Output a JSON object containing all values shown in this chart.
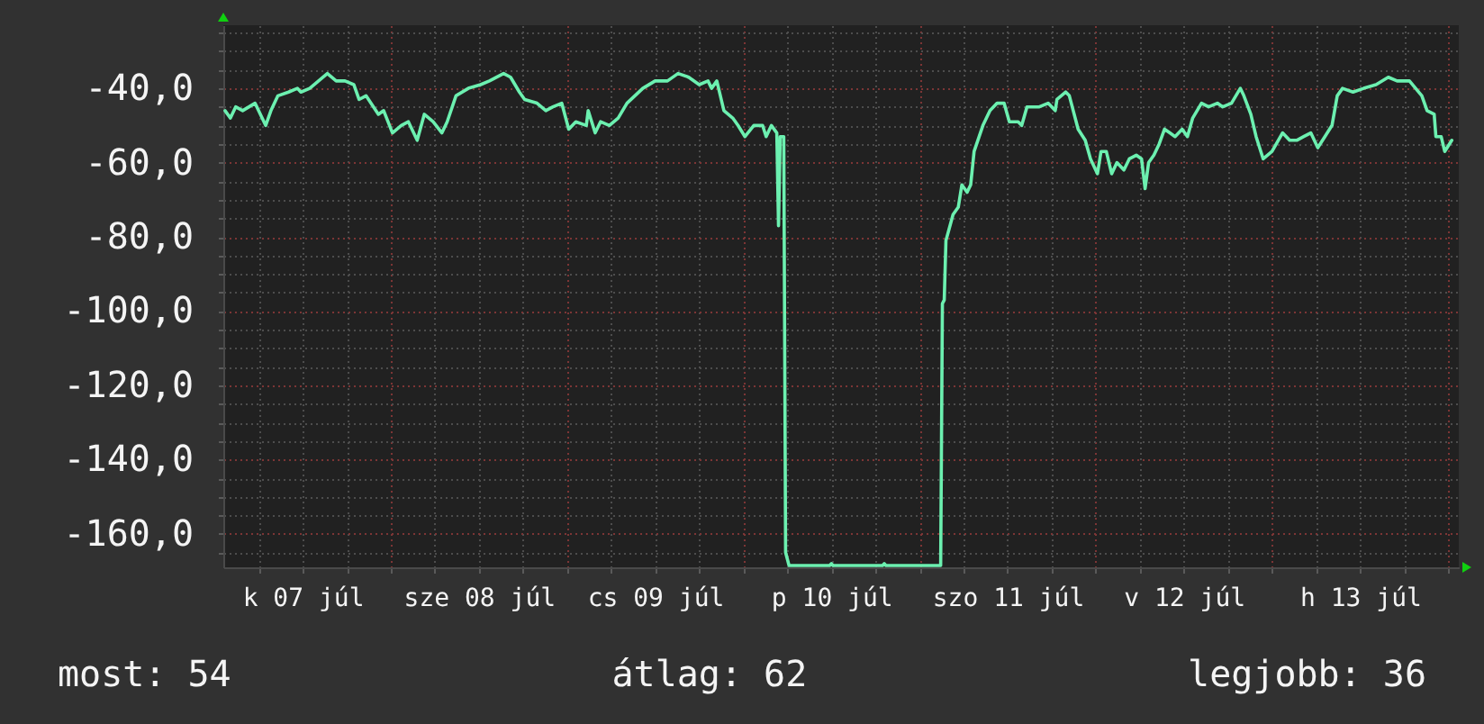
{
  "chart_data": {
    "type": "line",
    "x": [
      "--07-07T01:26",
      "--07-07T02:10",
      "--07-07T02:53",
      "--07-07T03:50",
      "--07-07T05:31",
      "--07-07T06:00",
      "--07-07T06:58",
      "--07-07T07:41",
      "--07-07T08:38",
      "--07-07T10:05",
      "--07-07T11:17",
      "--07-07T11:46",
      "--07-07T12:58",
      "--07-07T14:10",
      "--07-07T15:22",
      "--07-07T16:34",
      "--07-07T17:46",
      "--07-07T18:58",
      "--07-07T19:41",
      "--07-07T20:38",
      "--07-07T22:19",
      "--07-07T23:02",
      "--07-08T00:14",
      "--07-08T01:26",
      "--07-08T02:24",
      "--07-08T03:36",
      "--07-08T04:34",
      "--07-08T05:46",
      "--07-08T06:58",
      "--07-08T07:41",
      "--07-08T08:53",
      "--07-08T10:34",
      "--07-08T12:14",
      "--07-08T13:26",
      "--07-08T15:22",
      "--07-08T16:19",
      "--07-08T17:31",
      "--07-08T18:14",
      "--07-08T19:55",
      "--07-08T21:07",
      "--07-08T22:05",
      "--07-08T23:17",
      "--07-09T00:14",
      "--07-09T01:12",
      "--07-09T02:38",
      "--07-09T02:53",
      "--07-09T03:50",
      "--07-09T04:34",
      "--07-09T05:46",
      "--07-09T06:58",
      "--07-09T08:10",
      "--07-09T10:19",
      "--07-09T12:00",
      "--07-09T13:41",
      "--07-09T15:07",
      "--07-09T16:34",
      "--07-09T18:00",
      "--07-09T19:12",
      "--07-09T19:41",
      "--07-09T20:24",
      "--07-09T21:22",
      "--07-09T22:34",
      "--07-09T23:17",
      "--07-10T00:14",
      "--07-10T01:26",
      "--07-10T02:38",
      "--07-10T03:07",
      "--07-10T03:50",
      "--07-10T04:34",
      "--07-10T04:48",
      "--07-10T05:02",
      "--07-10T05:31",
      "--07-10T05:46",
      "--07-10T06:14",
      "--07-10T11:46",
      "--07-10T12:00",
      "--07-10T12:14",
      "--07-10T18:58",
      "--07-10T19:12",
      "--07-10T19:26",
      "--07-11T02:53",
      "--07-11T03:07",
      "--07-11T03:22",
      "--07-11T03:36",
      "--07-11T04:34",
      "--07-11T05:17",
      "--07-11T05:46",
      "--07-11T06:29",
      "--07-11T06:58",
      "--07-11T07:26",
      "--07-11T08:38",
      "--07-11T09:36",
      "--07-11T10:34",
      "--07-11T11:31",
      "--07-11T12:14",
      "--07-11T13:26",
      "--07-11T13:55",
      "--07-11T14:38",
      "--07-11T16:19",
      "--07-11T17:31",
      "--07-11T18:29",
      "--07-11T18:43",
      "--07-11T19:55",
      "--07-11T20:24",
      "--07-11T21:36",
      "--07-11T22:34",
      "--07-11T23:17",
      "--07-12T00:14",
      "--07-12T00:43",
      "--07-12T01:26",
      "--07-12T02:10",
      "--07-12T02:53",
      "--07-12T03:50",
      "--07-12T04:34",
      "--07-12T05:31",
      "--07-12T06:14",
      "--07-12T06:43",
      "--07-12T07:12",
      "--07-12T07:55",
      "--07-12T08:38",
      "--07-12T09:22",
      "--07-12T10:05",
      "--07-12T10:48",
      "--07-12T11:46",
      "--07-12T12:29",
      "--07-12T13:12",
      "--07-12T14:24",
      "--07-12T15:22",
      "--07-12T16:34",
      "--07-12T17:17",
      "--07-12T18:29",
      "--07-12T19:41",
      "--07-12T20:10",
      "--07-12T21:07",
      "--07-12T21:50",
      "--07-12T22:48",
      "--07-13T00:00",
      "--07-13T01:26",
      "--07-13T02:24",
      "--07-13T03:22",
      "--07-13T04:19",
      "--07-13T05:17",
      "--07-13T06:14",
      "--07-13T07:12",
      "--07-13T08:10",
      "--07-13T08:53",
      "--07-13T09:36",
      "--07-13T11:02",
      "--07-13T12:29",
      "--07-13T14:10",
      "--07-13T15:50",
      "--07-13T17:02",
      "--07-13T18:43",
      "--07-13T20:24",
      "--07-13T21:07",
      "--07-13T22:05",
      "--07-13T22:19",
      "--07-13T23:02",
      "--07-13T23:31",
      "--07-14T00:29"
    ],
    "series": [
      {
        "color": "#6cf0b0",
        "values": [
          -46,
          -48,
          -45,
          -46,
          -44,
          -46,
          -50,
          -46,
          -42,
          -41,
          -40,
          -41,
          -40,
          -38,
          -36,
          -38,
          -38,
          -39,
          -43,
          -42,
          -47,
          -46,
          -52,
          -50,
          -49,
          -54,
          -47,
          -49,
          -52,
          -49,
          -42,
          -40,
          -39,
          -38,
          -36,
          -37,
          -41,
          -43,
          -44,
          -46,
          -45,
          -44,
          -51,
          -49,
          -50,
          -46,
          -52,
          -49,
          -50,
          -48,
          -44,
          -40,
          -38,
          -38,
          -36,
          -37,
          -39,
          -38,
          -40,
          -38,
          -46,
          -48,
          -50,
          -53,
          -50,
          -50,
          -53,
          -50,
          -52,
          -77,
          -53,
          -53,
          -165,
          -168.5,
          -168.5,
          -168,
          -168.5,
          -168.5,
          -168,
          -168.5,
          -168.5,
          -98,
          -97,
          -81,
          -74,
          -72,
          -66,
          -68,
          -66,
          -57,
          -50,
          -46,
          -44,
          -44,
          -49,
          -49,
          -50,
          -45,
          -45,
          -44,
          -46,
          -43,
          -41,
          -42,
          -51,
          -54,
          -59,
          -63,
          -57,
          -57,
          -63,
          -60,
          -62,
          -59,
          -58,
          -59,
          -67,
          -60,
          -58,
          -55,
          -51,
          -52,
          -53,
          -51,
          -53,
          -48,
          -44,
          -45,
          -44,
          -45,
          -44,
          -40,
          -42,
          -47,
          -53,
          -59,
          -57,
          -52,
          -54,
          -54,
          -53,
          -52,
          -56,
          -53,
          -50,
          -42,
          -40,
          -41,
          -40,
          -39,
          -37,
          -38,
          -38,
          -42,
          -46,
          -47,
          -53,
          -53,
          -57,
          -54
        ]
      }
    ],
    "xlim": [
      "--07-07T01:12",
      "--07-14T01:26"
    ],
    "ylim": [
      -169,
      -23
    ],
    "xticks": [
      {
        "value": "--07-07T06:00",
        "label": null
      },
      {
        "value": "--07-07T12:00",
        "label": "k 07 júl"
      },
      {
        "value": "--07-07T18:00",
        "label": null
      },
      {
        "value": "--07-08T00:00",
        "label": null
      },
      {
        "value": "--07-08T06:00",
        "label": null
      },
      {
        "value": "--07-08T12:00",
        "label": "sze 08 júl"
      },
      {
        "value": "--07-08T18:00",
        "label": null
      },
      {
        "value": "--07-09T00:00",
        "label": null
      },
      {
        "value": "--07-09T06:00",
        "label": null
      },
      {
        "value": "--07-09T12:00",
        "label": "cs 09 júl"
      },
      {
        "value": "--07-09T18:00",
        "label": null
      },
      {
        "value": "--07-10T00:00",
        "label": null
      },
      {
        "value": "--07-10T06:00",
        "label": null
      },
      {
        "value": "--07-10T12:00",
        "label": "p 10 júl"
      },
      {
        "value": "--07-10T18:00",
        "label": null
      },
      {
        "value": "--07-11T00:00",
        "label": null
      },
      {
        "value": "--07-11T06:00",
        "label": null
      },
      {
        "value": "--07-11T12:00",
        "label": "szo 11 júl"
      },
      {
        "value": "--07-11T18:00",
        "label": null
      },
      {
        "value": "--07-12T00:00",
        "label": null
      },
      {
        "value": "--07-12T06:00",
        "label": null
      },
      {
        "value": "--07-12T12:00",
        "label": "v 12 júl"
      },
      {
        "value": "--07-12T18:00",
        "label": null
      },
      {
        "value": "--07-13T00:00",
        "label": null
      },
      {
        "value": "--07-13T06:00",
        "label": null
      },
      {
        "value": "--07-13T12:00",
        "label": "h 13 júl"
      },
      {
        "value": "--07-13T18:00",
        "label": null
      },
      {
        "value": "--07-14T00:00",
        "label": null
      }
    ],
    "yticks": [
      {
        "value": -165,
        "label": null
      },
      {
        "value": -160,
        "label": "-160,0"
      },
      {
        "value": -155,
        "label": null
      },
      {
        "value": -150,
        "label": null
      },
      {
        "value": -145,
        "label": null
      },
      {
        "value": -140,
        "label": "-140,0"
      },
      {
        "value": -135,
        "label": null
      },
      {
        "value": -130,
        "label": null
      },
      {
        "value": -125,
        "label": null
      },
      {
        "value": -120,
        "label": "-120,0"
      },
      {
        "value": -115,
        "label": null
      },
      {
        "value": -110,
        "label": null
      },
      {
        "value": -105,
        "label": null
      },
      {
        "value": -100,
        "label": "-100,0"
      },
      {
        "value": -95,
        "label": null
      },
      {
        "value": -90,
        "label": null
      },
      {
        "value": -85,
        "label": null
      },
      {
        "value": -80,
        "label": "-80,0"
      },
      {
        "value": -75,
        "label": null
      },
      {
        "value": -70,
        "label": null
      },
      {
        "value": -65,
        "label": null
      },
      {
        "value": -60,
        "label": "-60,0"
      },
      {
        "value": -55,
        "label": null
      },
      {
        "value": -50,
        "label": null
      },
      {
        "value": -45,
        "label": null
      },
      {
        "value": -40,
        "label": "-40,0"
      },
      {
        "value": -35,
        "label": null
      },
      {
        "value": -30,
        "label": null
      },
      {
        "value": -25,
        "label": null
      }
    ],
    "grid": true,
    "line_style": "solid",
    "annotations": [
      "most: 54",
      "átlag: 62",
      "legjobb: 36"
    ]
  }
}
